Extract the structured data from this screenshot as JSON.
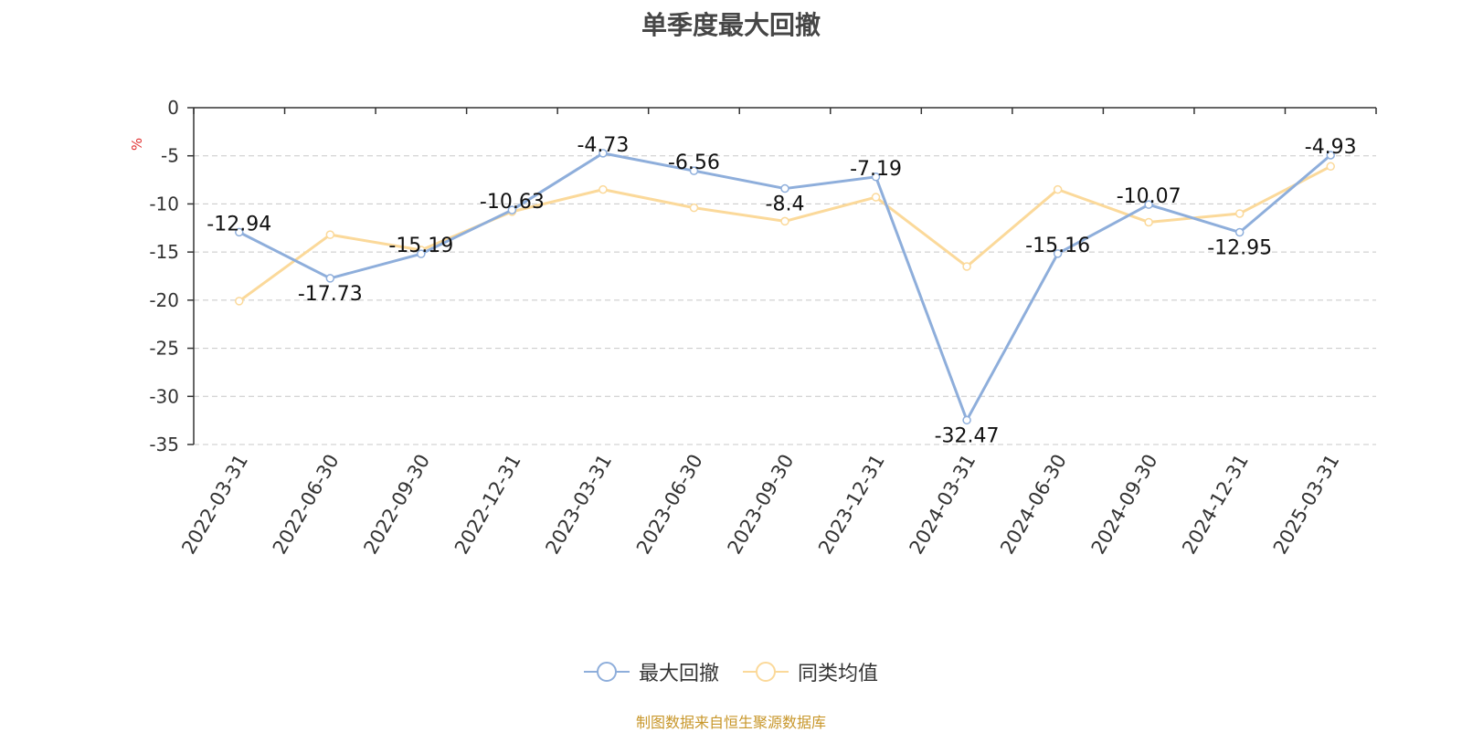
{
  "title": "单季度最大回撤",
  "source_note": "制图数据来自恒生聚源数据库",
  "chart_data": {
    "type": "line",
    "title": "单季度最大回撤",
    "xlabel": "",
    "ylabel": "%",
    "ylim": [
      -35,
      0
    ],
    "y_ticks": [
      0,
      -5,
      -10,
      -15,
      -20,
      -25,
      -30,
      -35
    ],
    "grid": true,
    "legend_position": "bottom-center",
    "categories": [
      "2022-03-31",
      "2022-06-30",
      "2022-09-30",
      "2022-12-31",
      "2023-03-31",
      "2023-06-30",
      "2023-09-30",
      "2023-12-31",
      "2024-03-31",
      "2024-06-30",
      "2024-09-30",
      "2024-12-31",
      "2025-03-31"
    ],
    "series": [
      {
        "name": "最大回撤",
        "color": "#8eaedb",
        "values": [
          -12.94,
          -17.73,
          -15.19,
          -10.63,
          -4.73,
          -6.56,
          -8.4,
          -7.19,
          -32.47,
          -15.16,
          -10.07,
          -12.95,
          -4.93
        ],
        "labels": [
          "-12.94",
          "-17.73",
          "-15.19",
          "-10.63",
          "-4.73",
          "-6.56",
          "-8.4",
          "-7.19",
          "-32.47",
          "-15.16",
          "-10.07",
          "-12.95",
          "-4.93"
        ]
      },
      {
        "name": "同类均值",
        "color": "#fbd99a",
        "values": [
          -20.1,
          -13.2,
          -14.8,
          -10.8,
          -8.5,
          -10.4,
          -11.8,
          -9.3,
          -16.5,
          -8.5,
          -11.9,
          -11.0,
          -6.1
        ]
      }
    ]
  },
  "colors": {
    "axis": "#333333",
    "grid": "#c8c8c8",
    "ylabel": "#e03030",
    "tick_text": "#333333"
  }
}
